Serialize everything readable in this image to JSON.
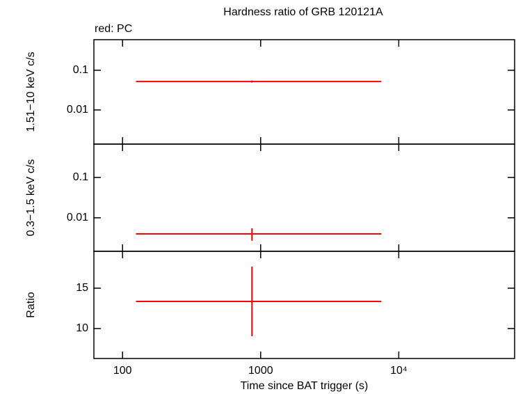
{
  "title": "Hardness ratio of GRB 120121A",
  "note": "red: PC",
  "chart_data": [
    {
      "type": "errorbar",
      "ylabel": "1.51−10 keV c/s",
      "xlim": [
        62,
        69000
      ],
      "xlog": true,
      "ylim": [
        0.00138,
        0.59
      ],
      "ylog": true,
      "yticks": [
        0.01,
        0.1
      ],
      "series": [
        {
          "color": "#ff0000",
          "x": [
            865
          ],
          "xerr_minus": [
            740
          ],
          "xerr_plus": [
            6615
          ],
          "values": [
            0.052
          ],
          "yerr_minus": [
            0.003
          ],
          "yerr_plus": [
            0.003
          ]
        }
      ]
    },
    {
      "type": "errorbar",
      "ylabel": "0.3−1.5 keV c/s",
      "xlim": [
        62,
        69000
      ],
      "xlog": true,
      "ylim": [
        0.00148,
        0.67
      ],
      "ylog": true,
      "yticks": [
        0.01,
        0.1
      ],
      "series": [
        {
          "color": "#ff0000",
          "x": [
            865
          ],
          "xerr_minus": [
            740
          ],
          "xerr_plus": [
            6615
          ],
          "values": [
            0.004
          ],
          "yerr_minus": [
            0.0013
          ],
          "yerr_plus": [
            0.0015
          ]
        }
      ]
    },
    {
      "type": "errorbar",
      "ylabel": "Ratio",
      "xlabel": "Time since BAT trigger (s)",
      "xlim": [
        62,
        69000
      ],
      "xlog": true,
      "xticks": [
        100,
        1000,
        {
          "value": 10000,
          "label": "10⁴"
        }
      ],
      "ylim": [
        6.29,
        19.57
      ],
      "ylog": false,
      "yticks": [
        10,
        15
      ],
      "series": [
        {
          "color": "#ff0000",
          "x": [
            865
          ],
          "xerr_minus": [
            740
          ],
          "xerr_plus": [
            6615
          ],
          "values": [
            13.36
          ],
          "yerr_minus": [
            4.31
          ],
          "yerr_plus": [
            4.31
          ]
        }
      ]
    }
  ]
}
